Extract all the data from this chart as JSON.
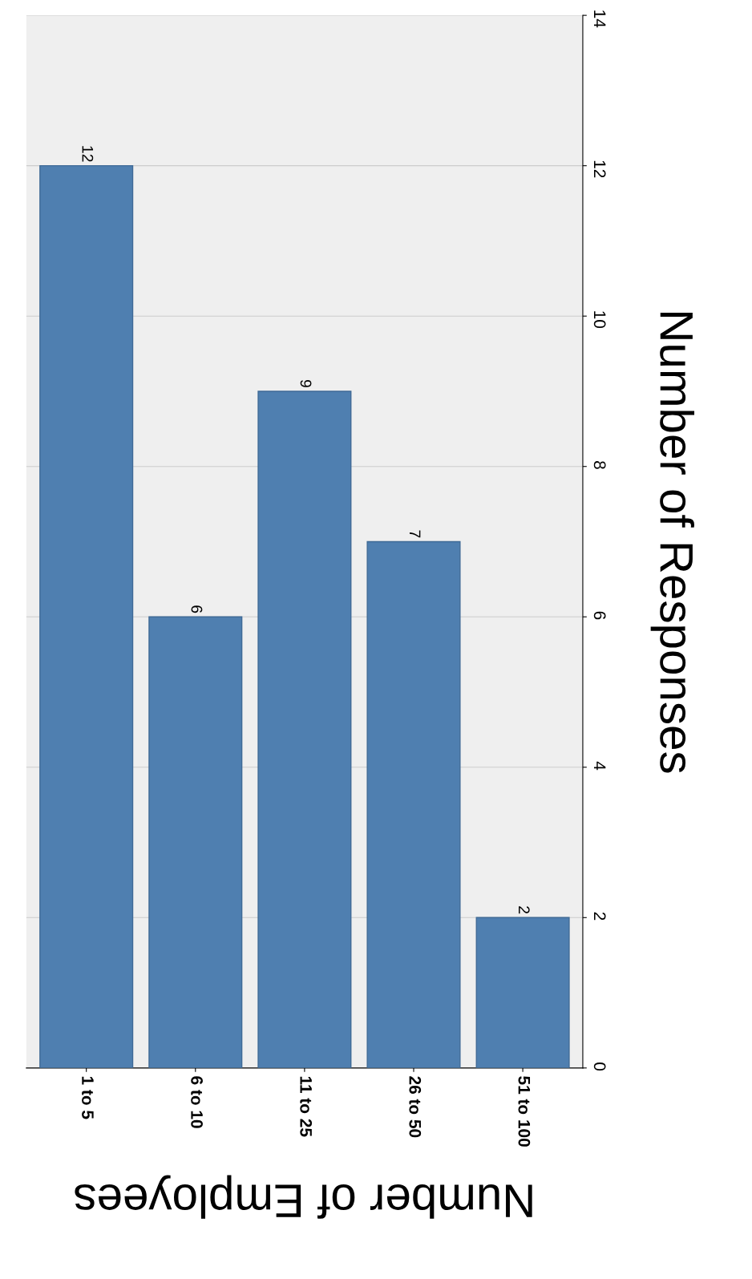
{
  "chart_data": {
    "type": "bar",
    "xlabel": "Number of Employees",
    "ylabel": "Number of Responses",
    "categories": [
      "1 to 5",
      "6 to 10",
      "11 to 25",
      "26 to 50",
      "51 to 100"
    ],
    "values": [
      12,
      6,
      9,
      7,
      2
    ],
    "color": "#4f7fb0",
    "ylim": [
      0,
      14
    ],
    "yticks": [
      0,
      2,
      4,
      6,
      8,
      10,
      12,
      14
    ],
    "grid": "y",
    "data_labels": true
  }
}
